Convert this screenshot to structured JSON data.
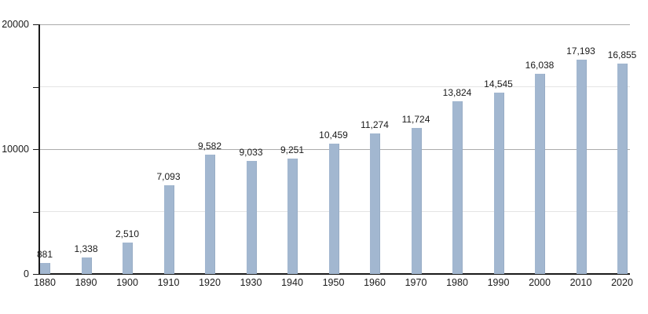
{
  "chart_data": {
    "type": "bar",
    "title": "",
    "xlabel": "",
    "ylabel": "",
    "categories": [
      "1880",
      "1890",
      "1900",
      "1910",
      "1920",
      "1930",
      "1940",
      "1950",
      "1960",
      "1970",
      "1980",
      "1990",
      "2000",
      "2010",
      "2020"
    ],
    "values": [
      881,
      1338,
      2510,
      7093,
      9582,
      9033,
      9251,
      10459,
      11274,
      11724,
      13824,
      14545,
      16038,
      17193,
      16855
    ],
    "value_labels": [
      "881",
      "1,338",
      "2,510",
      "7,093",
      "9,582",
      "9,033",
      "9,251",
      "10,459",
      "11,274",
      "11,724",
      "13,824",
      "14,545",
      "16,038",
      "17,193",
      "16,855"
    ],
    "ylim": [
      0,
      20000
    ],
    "yticks": [
      {
        "value": 0,
        "label": "0",
        "gridline": "none"
      },
      {
        "value": 5000,
        "label": "",
        "gridline": "minor"
      },
      {
        "value": 10000,
        "label": "10000",
        "gridline": "major"
      },
      {
        "value": 15000,
        "label": "",
        "gridline": "minor"
      },
      {
        "value": 20000,
        "label": "20000",
        "gridline": "major"
      }
    ],
    "grid": "horizontal",
    "legend": "none",
    "colors": {
      "bar": "#a2b7d0",
      "bar_edge": "#97acc5",
      "major_gridline": "#ababab",
      "minor_gridline": "#e4e4e4",
      "axis": "#1a1a1a",
      "text": "#1a1a1a",
      "background": "#ffffff"
    }
  }
}
